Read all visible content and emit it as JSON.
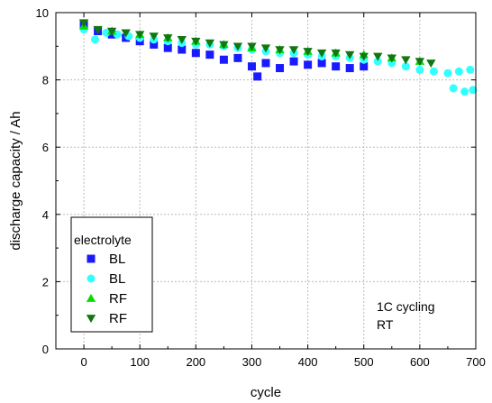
{
  "chart_data": {
    "type": "scatter",
    "title": "",
    "xlabel": "cycle",
    "ylabel": "discharge capacity / Ah",
    "xlim": [
      -50,
      700
    ],
    "ylim": [
      0,
      10
    ],
    "xticks": [
      0,
      100,
      200,
      300,
      400,
      500,
      600,
      700
    ],
    "yticks": [
      0,
      2,
      4,
      6,
      8,
      10
    ],
    "grid": true,
    "legend": {
      "title": "electrolyte",
      "placement": "bottom-left",
      "entries": [
        "BL",
        "BL",
        "RF",
        "RF"
      ]
    },
    "annotations": [
      "1C cycling",
      "RT"
    ],
    "series": [
      {
        "name": "BL",
        "marker": "square",
        "color": "#1a1aff",
        "points": [
          [
            0,
            9.65
          ],
          [
            25,
            9.45
          ],
          [
            50,
            9.35
          ],
          [
            75,
            9.25
          ],
          [
            100,
            9.15
          ],
          [
            125,
            9.05
          ],
          [
            150,
            8.95
          ],
          [
            175,
            8.9
          ],
          [
            200,
            8.8
          ],
          [
            225,
            8.75
          ],
          [
            250,
            8.6
          ],
          [
            275,
            8.65
          ],
          [
            300,
            8.4
          ],
          [
            310,
            8.1
          ],
          [
            325,
            8.5
          ],
          [
            350,
            8.35
          ],
          [
            375,
            8.55
          ],
          [
            400,
            8.45
          ],
          [
            425,
            8.5
          ],
          [
            450,
            8.4
          ],
          [
            475,
            8.35
          ],
          [
            500,
            8.4
          ]
        ]
      },
      {
        "name": "BL",
        "marker": "circle",
        "color": "#33ffff",
        "points": [
          [
            0,
            9.5
          ],
          [
            20,
            9.2
          ],
          [
            40,
            9.4
          ],
          [
            60,
            9.35
          ],
          [
            80,
            9.3
          ],
          [
            100,
            9.25
          ],
          [
            125,
            9.2
          ],
          [
            150,
            9.15
          ],
          [
            175,
            9.1
          ],
          [
            200,
            9.05
          ],
          [
            225,
            9.05
          ],
          [
            250,
            9.0
          ],
          [
            275,
            8.95
          ],
          [
            300,
            8.9
          ],
          [
            325,
            8.85
          ],
          [
            350,
            8.8
          ],
          [
            375,
            8.8
          ],
          [
            400,
            8.75
          ],
          [
            425,
            8.7
          ],
          [
            450,
            8.7
          ],
          [
            475,
            8.65
          ],
          [
            500,
            8.6
          ],
          [
            525,
            8.55
          ],
          [
            550,
            8.5
          ],
          [
            575,
            8.4
          ],
          [
            600,
            8.3
          ],
          [
            625,
            8.25
          ],
          [
            650,
            8.2
          ],
          [
            670,
            8.25
          ],
          [
            690,
            8.3
          ],
          [
            660,
            7.75
          ],
          [
            680,
            7.65
          ],
          [
            695,
            7.7
          ]
        ]
      },
      {
        "name": "RF",
        "marker": "triangle-up",
        "color": "#00dd00",
        "points": [
          [
            0,
            9.6
          ],
          [
            50,
            9.45
          ],
          [
            100,
            9.35
          ],
          [
            150,
            9.25
          ],
          [
            200,
            9.15
          ],
          [
            250,
            9.05
          ],
          [
            300,
            8.95
          ],
          [
            350,
            8.9
          ],
          [
            400,
            8.85
          ],
          [
            450,
            8.8
          ],
          [
            500,
            8.75
          ],
          [
            550,
            8.65
          ],
          [
            600,
            8.55
          ]
        ]
      },
      {
        "name": "RF",
        "marker": "triangle-down",
        "color": "#117711",
        "points": [
          [
            0,
            9.7
          ],
          [
            25,
            9.5
          ],
          [
            50,
            9.45
          ],
          [
            75,
            9.4
          ],
          [
            100,
            9.35
          ],
          [
            125,
            9.3
          ],
          [
            150,
            9.25
          ],
          [
            175,
            9.2
          ],
          [
            200,
            9.15
          ],
          [
            225,
            9.1
          ],
          [
            250,
            9.05
          ],
          [
            275,
            9.0
          ],
          [
            300,
            9.0
          ],
          [
            325,
            8.95
          ],
          [
            350,
            8.9
          ],
          [
            375,
            8.9
          ],
          [
            400,
            8.85
          ],
          [
            425,
            8.8
          ],
          [
            450,
            8.8
          ],
          [
            475,
            8.75
          ],
          [
            500,
            8.7
          ],
          [
            525,
            8.7
          ],
          [
            550,
            8.65
          ],
          [
            575,
            8.6
          ],
          [
            600,
            8.55
          ],
          [
            620,
            8.5
          ]
        ]
      }
    ]
  }
}
